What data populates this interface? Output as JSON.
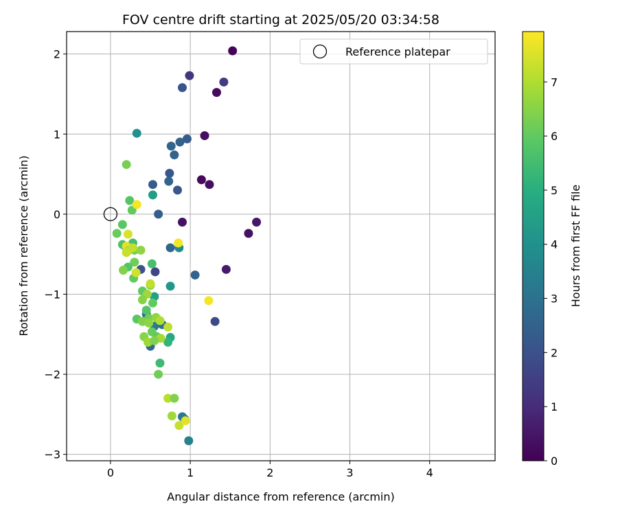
{
  "chart_data": {
    "type": "scatter",
    "title": "FOV centre drift starting at 2025/05/20 03:34:58",
    "xlabel": "Angular distance from reference (arcmin)",
    "ylabel": "Rotation from reference (arcmin)",
    "xlim": [
      -0.55,
      4.82
    ],
    "ylim": [
      -3.08,
      2.28
    ],
    "xticks": [
      0,
      1,
      2,
      3,
      4
    ],
    "yticks": [
      -3,
      -2,
      -1,
      0,
      1,
      2
    ],
    "grid": true,
    "legend": {
      "position": "top-right",
      "entries": [
        "Reference platepar"
      ]
    },
    "reference_point": {
      "x": 0,
      "y": 0,
      "label": "Reference platepar"
    },
    "colormap": "viridis",
    "colorbar": {
      "label": "Hours from first FF file",
      "range": [
        0,
        7.93
      ],
      "ticks": [
        0,
        1,
        2,
        3,
        4,
        5,
        6,
        7
      ]
    },
    "series": [
      {
        "points": [
          {
            "x": 1.53,
            "y": 2.04,
            "c": 0.1
          },
          {
            "x": 1.33,
            "y": 1.52,
            "c": 0.2
          },
          {
            "x": 1.18,
            "y": 0.98,
            "c": 0.3
          },
          {
            "x": 1.14,
            "y": 0.43,
            "c": 0.2
          },
          {
            "x": 1.24,
            "y": 0.37,
            "c": 0.3
          },
          {
            "x": 0.9,
            "y": -0.1,
            "c": 0.4
          },
          {
            "x": 1.83,
            "y": -0.1,
            "c": 0.5
          },
          {
            "x": 1.73,
            "y": -0.24,
            "c": 0.4
          },
          {
            "x": 1.45,
            "y": -0.69,
            "c": 0.6
          },
          {
            "x": 0.99,
            "y": 1.73,
            "c": 1.3
          },
          {
            "x": 1.42,
            "y": 1.65,
            "c": 1.4
          },
          {
            "x": 0.9,
            "y": 1.58,
            "c": 2.1
          },
          {
            "x": 0.96,
            "y": 0.94,
            "c": 2.3
          },
          {
            "x": 0.87,
            "y": 0.9,
            "c": 2.5
          },
          {
            "x": 0.76,
            "y": 0.85,
            "c": 2.6
          },
          {
            "x": 0.8,
            "y": 0.74,
            "c": 2.5
          },
          {
            "x": 0.74,
            "y": 0.51,
            "c": 2.2
          },
          {
            "x": 0.73,
            "y": 0.41,
            "c": 2.6
          },
          {
            "x": 0.53,
            "y": 0.37,
            "c": 2.3
          },
          {
            "x": 0.84,
            "y": 0.3,
            "c": 2.2
          },
          {
            "x": 0.6,
            "y": 0.0,
            "c": 2.4
          },
          {
            "x": 1.06,
            "y": -0.76,
            "c": 2.5
          },
          {
            "x": 1.31,
            "y": -1.34,
            "c": 1.8
          },
          {
            "x": 0.56,
            "y": -0.72,
            "c": 1.7
          },
          {
            "x": 0.38,
            "y": -0.69,
            "c": 2.0
          },
          {
            "x": 0.75,
            "y": -0.42,
            "c": 2.6
          },
          {
            "x": 0.33,
            "y": 1.01,
            "c": 4.0
          },
          {
            "x": 0.53,
            "y": 0.24,
            "c": 4.4
          },
          {
            "x": 0.86,
            "y": -0.42,
            "c": 3.8
          },
          {
            "x": 0.75,
            "y": -0.9,
            "c": 4.2
          },
          {
            "x": 0.98,
            "y": -2.83,
            "c": 3.5
          },
          {
            "x": 0.93,
            "y": -2.56,
            "c": 3.0
          },
          {
            "x": 0.9,
            "y": -2.53,
            "c": 3.2
          },
          {
            "x": 0.45,
            "y": -1.25,
            "c": 3.1
          },
          {
            "x": 0.5,
            "y": -1.65,
            "c": 2.8
          },
          {
            "x": 0.55,
            "y": -1.4,
            "c": 3.3
          },
          {
            "x": 0.65,
            "y": -1.38,
            "c": 2.9
          },
          {
            "x": 0.55,
            "y": -1.03,
            "c": 4.5
          },
          {
            "x": 0.75,
            "y": -1.54,
            "c": 4.8
          },
          {
            "x": 0.72,
            "y": -1.6,
            "c": 5.2
          },
          {
            "x": 0.62,
            "y": -1.86,
            "c": 5.4
          },
          {
            "x": 0.2,
            "y": 0.62,
            "c": 6.3
          },
          {
            "x": 0.24,
            "y": 0.17,
            "c": 5.8
          },
          {
            "x": 0.27,
            "y": 0.05,
            "c": 6.0
          },
          {
            "x": 0.15,
            "y": -0.13,
            "c": 5.9
          },
          {
            "x": 0.08,
            "y": -0.24,
            "c": 6.1
          },
          {
            "x": 0.15,
            "y": -0.38,
            "c": 5.7
          },
          {
            "x": 0.2,
            "y": -0.42,
            "c": 5.6
          },
          {
            "x": 0.28,
            "y": -0.36,
            "c": 5.5
          },
          {
            "x": 0.3,
            "y": -0.45,
            "c": 6.2
          },
          {
            "x": 0.38,
            "y": -0.45,
            "c": 6.6
          },
          {
            "x": 0.3,
            "y": -0.6,
            "c": 6.2
          },
          {
            "x": 0.22,
            "y": -0.66,
            "c": 5.8
          },
          {
            "x": 0.16,
            "y": -0.7,
            "c": 6.4
          },
          {
            "x": 0.29,
            "y": -0.8,
            "c": 6.0
          },
          {
            "x": 0.52,
            "y": -0.62,
            "c": 5.6
          },
          {
            "x": 0.4,
            "y": -0.96,
            "c": 6.0
          },
          {
            "x": 0.5,
            "y": -0.89,
            "c": 6.6
          },
          {
            "x": 0.46,
            "y": -1.0,
            "c": 6.8
          },
          {
            "x": 0.4,
            "y": -1.07,
            "c": 6.5
          },
          {
            "x": 0.53,
            "y": -1.11,
            "c": 6.0
          },
          {
            "x": 0.45,
            "y": -1.2,
            "c": 5.8
          },
          {
            "x": 0.33,
            "y": -1.31,
            "c": 5.9
          },
          {
            "x": 0.48,
            "y": -1.3,
            "c": 6.2
          },
          {
            "x": 0.4,
            "y": -1.34,
            "c": 6.4
          },
          {
            "x": 0.57,
            "y": -1.29,
            "c": 6.6
          },
          {
            "x": 0.62,
            "y": -1.33,
            "c": 7.0
          },
          {
            "x": 0.72,
            "y": -1.41,
            "c": 7.2
          },
          {
            "x": 0.48,
            "y": -1.36,
            "c": 6.6
          },
          {
            "x": 0.52,
            "y": -1.47,
            "c": 6.1
          },
          {
            "x": 0.42,
            "y": -1.53,
            "c": 6.5
          },
          {
            "x": 0.58,
            "y": -1.53,
            "c": 6.0
          },
          {
            "x": 0.63,
            "y": -1.55,
            "c": 6.9
          },
          {
            "x": 0.47,
            "y": -1.6,
            "c": 6.8
          },
          {
            "x": 0.55,
            "y": -1.58,
            "c": 6.4
          },
          {
            "x": 0.6,
            "y": -2.0,
            "c": 6.2
          },
          {
            "x": 0.72,
            "y": -2.3,
            "c": 7.1
          },
          {
            "x": 0.8,
            "y": -2.3,
            "c": 6.4
          },
          {
            "x": 0.77,
            "y": -2.52,
            "c": 6.8
          },
          {
            "x": 0.86,
            "y": -2.64,
            "c": 7.3
          },
          {
            "x": 0.94,
            "y": -2.58,
            "c": 7.6
          },
          {
            "x": 0.33,
            "y": 0.12,
            "c": 7.8
          },
          {
            "x": 0.22,
            "y": -0.25,
            "c": 7.5
          },
          {
            "x": 0.2,
            "y": -0.4,
            "c": 7.6
          },
          {
            "x": 0.23,
            "y": -0.45,
            "c": 7.0
          },
          {
            "x": 0.2,
            "y": -0.48,
            "c": 7.3
          },
          {
            "x": 0.28,
            "y": -0.42,
            "c": 7.2
          },
          {
            "x": 0.32,
            "y": -0.73,
            "c": 7.4
          },
          {
            "x": 0.85,
            "y": -0.36,
            "c": 7.8
          },
          {
            "x": 0.5,
            "y": -0.87,
            "c": 7.2
          },
          {
            "x": 1.23,
            "y": -1.08,
            "c": 7.8
          }
        ]
      }
    ]
  }
}
